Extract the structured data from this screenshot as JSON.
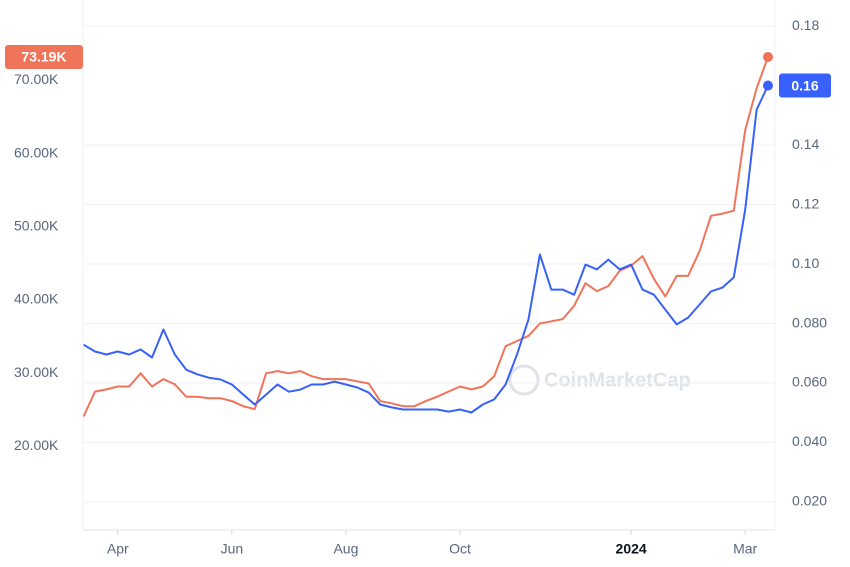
{
  "chart_data": {
    "type": "line",
    "watermark": "CoinMarketCap",
    "x": [
      2.4,
      2.6,
      2.8,
      3.0,
      3.2,
      3.4,
      3.6,
      3.8,
      4.0,
      4.2,
      4.4,
      4.6,
      4.8,
      5.0,
      5.2,
      5.4,
      5.6,
      5.8,
      6.0,
      6.2,
      6.4,
      6.6,
      6.8,
      7.0,
      7.2,
      7.4,
      7.6,
      7.8,
      8.0,
      8.2,
      8.4,
      8.6,
      8.8,
      9.0,
      9.2,
      9.4,
      9.6,
      9.8,
      10.0,
      10.2,
      10.4,
      10.6,
      10.8,
      11.0,
      11.2,
      11.4,
      11.6,
      11.8,
      12.0,
      12.2,
      12.4,
      12.6,
      12.8,
      13.0,
      13.2,
      13.4,
      13.6,
      13.8,
      14.0,
      14.2,
      14.4
    ],
    "xlim": [
      2.39,
      14.4
    ],
    "xticks": [
      {
        "value": 3,
        "label": "Apr"
      },
      {
        "value": 5,
        "label": "Jun"
      },
      {
        "value": 7,
        "label": "Aug"
      },
      {
        "value": 9,
        "label": "Oct"
      },
      {
        "value": 12,
        "label": "2024"
      },
      {
        "value": 14,
        "label": "Mar"
      }
    ],
    "ylim": [
      8600,
      79600
    ],
    "yticks": [
      {
        "value": 20000,
        "label": "20.00K"
      },
      {
        "value": 30000,
        "label": "30.00K"
      },
      {
        "value": 40000,
        "label": "40.00K"
      },
      {
        "value": 50000,
        "label": "50.00K"
      },
      {
        "value": 60000,
        "label": "60.00K"
      },
      {
        "value": 70000,
        "label": "70.00K"
      }
    ],
    "y2lim": [
      0.0106,
      0.1854
    ],
    "y2ticks": [
      {
        "value": 0.02,
        "label": "0.020"
      },
      {
        "value": 0.04,
        "label": "0.040"
      },
      {
        "value": 0.06,
        "label": "0.060"
      },
      {
        "value": 0.08,
        "label": "0.080"
      },
      {
        "value": 0.1,
        "label": "0.10"
      },
      0.12,
      0.14,
      0.18
    ],
    "grid": true,
    "series": [
      {
        "color": "#f0745a",
        "current": {
          "value": 73190,
          "label": "73.19K"
        },
        "values": [
          24100,
          27500,
          27800,
          28200,
          28200,
          30000,
          28200,
          29200,
          28500,
          26800,
          26800,
          26600,
          26600,
          26200,
          25500,
          25100,
          30000,
          30300,
          30000,
          30300,
          29600,
          29200,
          29200,
          29200,
          28900,
          28600,
          26200,
          25900,
          25500,
          25500,
          26200,
          26800,
          27500,
          28200,
          27800,
          28200,
          29600,
          33700,
          34400,
          35100,
          36800,
          37100,
          37400,
          39200,
          42300,
          41200,
          41900,
          44000,
          44700,
          46000,
          42900,
          40500,
          43300,
          43300,
          46700,
          51500,
          51800,
          52200,
          63200,
          68900,
          73190
        ]
      },
      {
        "color": "#3861fb",
        "axis": "y2",
        "current": {
          "value": 0.16,
          "label": "0.16"
        },
        "values": [
          0.0729,
          0.0706,
          0.0696,
          0.0706,
          0.0696,
          0.0713,
          0.0686,
          0.078,
          0.0696,
          0.0645,
          0.0629,
          0.0618,
          0.0612,
          0.0595,
          0.0561,
          0.0528,
          0.0561,
          0.0595,
          0.0571,
          0.0578,
          0.0595,
          0.0595,
          0.0605,
          0.0595,
          0.0585,
          0.0568,
          0.0528,
          0.0518,
          0.0511,
          0.0511,
          0.0511,
          0.0511,
          0.0504,
          0.0511,
          0.0501,
          0.0528,
          0.0545,
          0.0595,
          0.0696,
          0.0813,
          0.1032,
          0.0914,
          0.0914,
          0.0897,
          0.0998,
          0.0982,
          0.1015,
          0.0982,
          0.0998,
          0.0914,
          0.0897,
          0.0847,
          0.0797,
          0.082,
          0.0864,
          0.0908,
          0.0921,
          0.0955,
          0.1183,
          0.1519,
          0.16
        ]
      }
    ]
  }
}
